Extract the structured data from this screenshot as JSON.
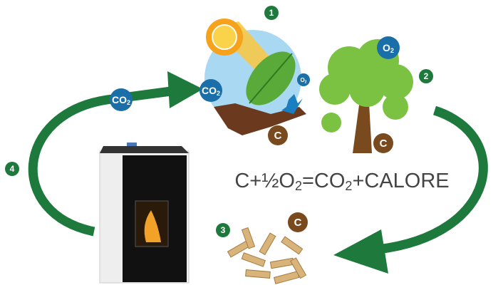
{
  "steps": [
    "1",
    "2",
    "3",
    "4"
  ],
  "co2_labels": [
    {
      "main": "CO",
      "sub": "2"
    },
    {
      "main": "CO",
      "sub": "2"
    }
  ],
  "o2_labels": [
    {
      "main": "O",
      "sub": "2"
    },
    {
      "main": "O",
      "sub": "2"
    }
  ],
  "carbon_labels": [
    "C",
    "C",
    "C"
  ],
  "equation": {
    "parts": [
      "C+½O",
      "2",
      "=CO",
      "2",
      "+CALORE"
    ]
  }
}
